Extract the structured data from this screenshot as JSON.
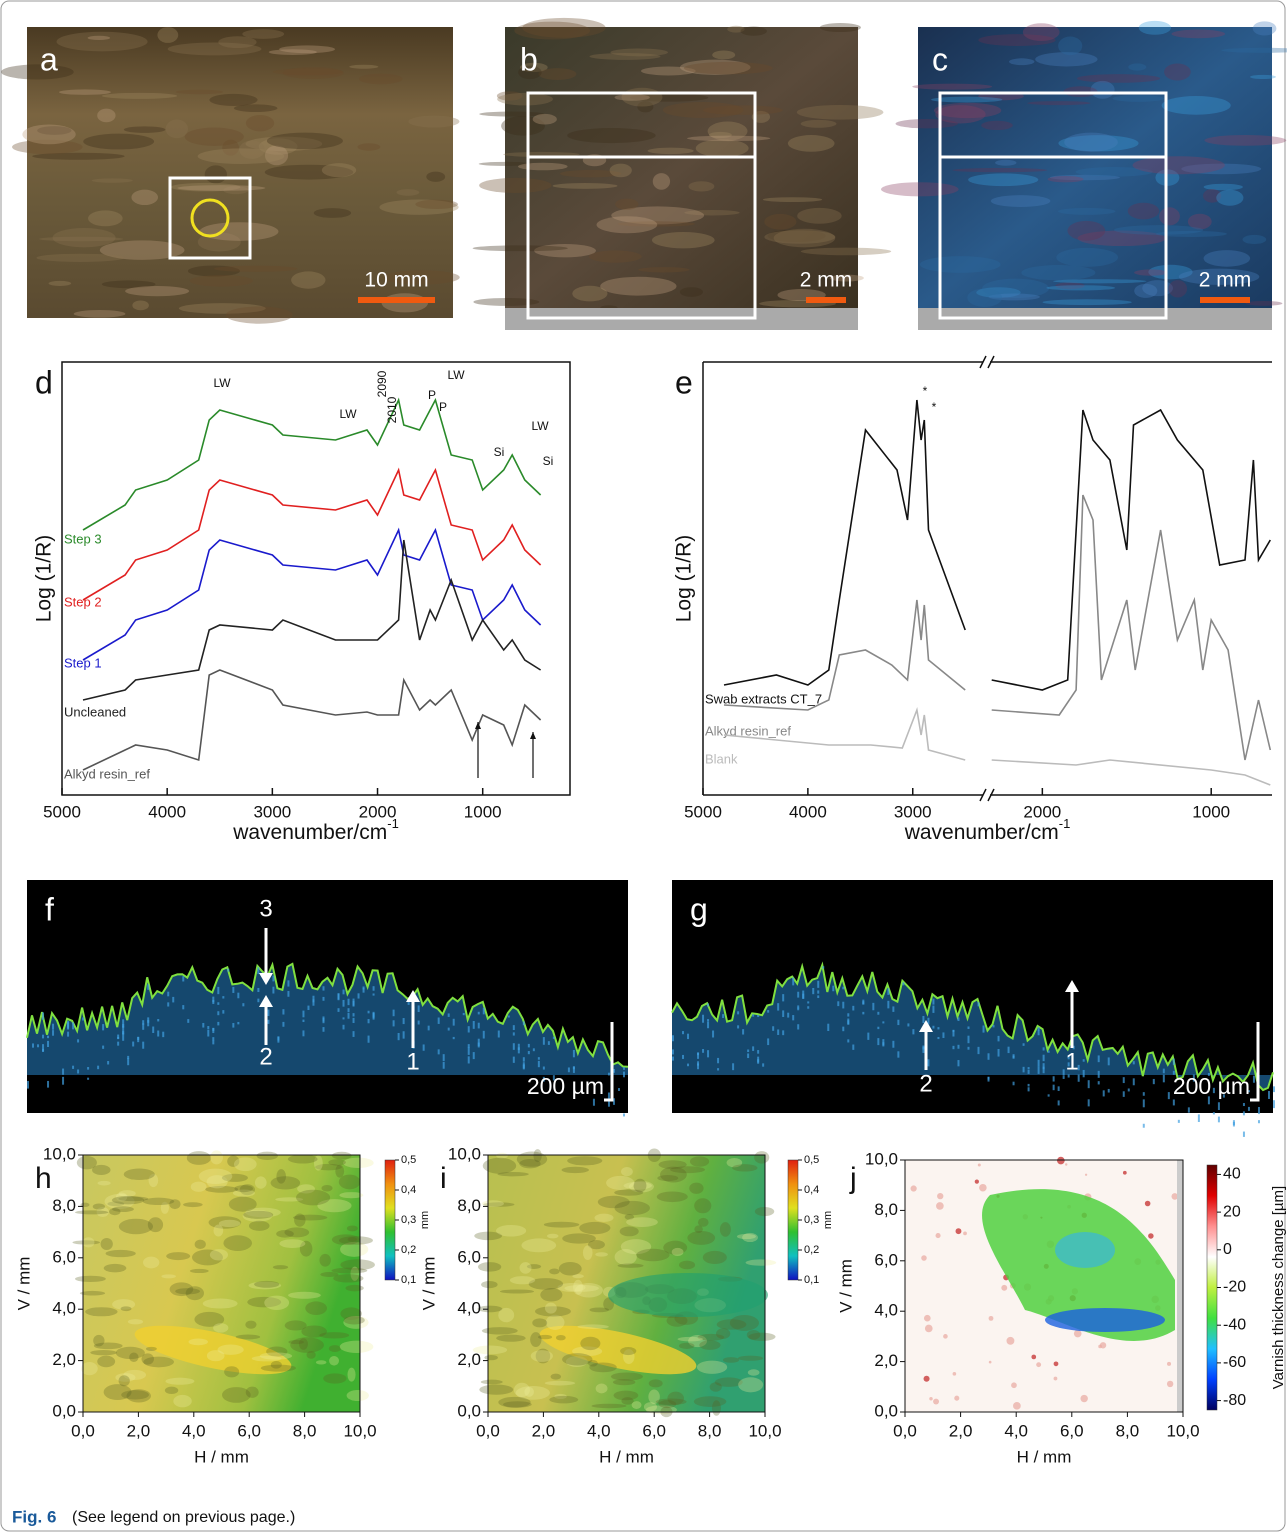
{
  "photos": [
    {
      "label": "a",
      "scale": "10 mm"
    },
    {
      "label": "b",
      "scale": "2 mm"
    },
    {
      "label": "c",
      "scale": "2 mm"
    }
  ],
  "chart_data": [
    {
      "type": "line",
      "label": "d",
      "ylabel": "Log (1/R)",
      "xlabel": "wavenumber/cm",
      "xlabel_sup": "-1",
      "xlim": [
        5000,
        170
      ],
      "ylim": [
        0,
        433
      ],
      "xticks": [
        5000,
        4000,
        3000,
        2000,
        1000
      ],
      "x": [
        4800,
        4400,
        4300,
        4000,
        3700,
        3600,
        3500,
        3000,
        2900,
        2400,
        2100,
        2000,
        1800,
        1750,
        1600,
        1500,
        1450,
        1300,
        1100,
        1000,
        800,
        720,
        600,
        450
      ],
      "series": [
        {
          "name": "Step 3",
          "color": "#2a8a2a",
          "values": [
            265,
            290,
            305,
            315,
            335,
            375,
            385,
            370,
            360,
            355,
            365,
            350,
            395,
            370,
            365,
            385,
            395,
            340,
            335,
            305,
            325,
            340,
            315,
            300
          ]
        },
        {
          "name": "Step 2",
          "color": "#e02020",
          "values": [
            195,
            220,
            235,
            245,
            265,
            305,
            315,
            300,
            290,
            285,
            295,
            280,
            325,
            300,
            295,
            315,
            325,
            270,
            265,
            235,
            255,
            270,
            245,
            230
          ]
        },
        {
          "name": "Step 1",
          "color": "#1a1acc",
          "values": [
            135,
            160,
            175,
            185,
            205,
            245,
            255,
            240,
            230,
            225,
            235,
            220,
            265,
            240,
            235,
            255,
            265,
            210,
            205,
            175,
            195,
            210,
            185,
            170
          ]
        },
        {
          "name": "Uncleaned",
          "color": "#222222",
          "values": [
            95,
            105,
            115,
            120,
            125,
            165,
            170,
            165,
            175,
            155,
            155,
            155,
            175,
            255,
            155,
            185,
            175,
            215,
            155,
            175,
            145,
            155,
            135,
            125
          ]
        },
        {
          "name": "Alkyd resin_ref",
          "color": "#555555",
          "values": [
            25,
            45,
            50,
            45,
            35,
            120,
            125,
            105,
            90,
            80,
            83,
            80,
            80,
            115,
            85,
            95,
            90,
            105,
            55,
            80,
            70,
            50,
            90,
            75
          ]
        }
      ],
      "annotations": [
        "LW",
        "2090",
        "2010",
        "P",
        "P",
        "LW",
        "LW",
        "Si",
        "LW",
        "Si"
      ]
    },
    {
      "type": "line",
      "label": "e",
      "ylabel": "Log (1/R)",
      "xlabel": "wavenumber/cm",
      "xlabel_sup": "-1",
      "segments": [
        [
          5000,
          2330
        ],
        [
          2310,
          640
        ]
      ],
      "ylim": [
        0,
        433
      ],
      "xticks": [
        5000,
        4000,
        3000,
        2000,
        1000
      ],
      "series": [
        {
          "name": "Swab extracts CT_7",
          "color": "#111111",
          "x": [
            4800,
            4300,
            4000,
            3800,
            3700,
            3450,
            3150,
            3050,
            2960,
            2920,
            2890,
            2850,
            2500,
            2400,
            2300,
            2000,
            1850,
            1760,
            1700,
            1600,
            1500,
            1460,
            1300,
            1200,
            1050,
            950,
            800,
            750,
            720,
            650
          ],
          "values": [
            110,
            120,
            110,
            125,
            195,
            365,
            325,
            275,
            395,
            355,
            375,
            265,
            165,
            null,
            115,
            105,
            115,
            385,
            355,
            335,
            245,
            370,
            385,
            355,
            325,
            230,
            235,
            335,
            235,
            255
          ]
        },
        {
          "name": "Alkyd resin_ref",
          "color": "#888888",
          "x": [
            4800,
            4000,
            3800,
            3700,
            3450,
            3200,
            3050,
            2960,
            2920,
            2890,
            2850,
            2500,
            2400,
            2300,
            1900,
            1800,
            1760,
            1700,
            1650,
            1500,
            1450,
            1300,
            1200,
            1100,
            1050,
            1000,
            900,
            800,
            720,
            650
          ],
          "values": [
            90,
            85,
            95,
            140,
            145,
            130,
            115,
            195,
            155,
            190,
            135,
            105,
            null,
            85,
            80,
            105,
            300,
            275,
            115,
            195,
            125,
            265,
            155,
            195,
            125,
            175,
            145,
            35,
            95,
            45
          ]
        },
        {
          "name": "Blank",
          "color": "#bbbbbb",
          "x": [
            4800,
            3800,
            3400,
            3100,
            2960,
            2920,
            2890,
            2850,
            2500,
            2400,
            2300,
            1800,
            1600,
            1000,
            800,
            650
          ],
          "values": [
            60,
            50,
            50,
            47,
            85,
            60,
            80,
            45,
            35,
            null,
            35,
            30,
            35,
            25,
            20,
            10
          ]
        }
      ],
      "annotations": [
        "*",
        "*"
      ]
    },
    {
      "type": "heatmap",
      "label": "h",
      "xlabel": "H / mm",
      "ylabel": "V / mm",
      "xlim": [
        0,
        10
      ],
      "ylim": [
        0,
        10
      ],
      "xticks": [
        {
          "value": 0,
          "label": "0,0"
        },
        {
          "value": 2,
          "label": "2,0"
        },
        {
          "value": 4,
          "label": "4,0"
        },
        {
          "value": 6,
          "label": "6,0"
        },
        {
          "value": 8,
          "label": "8,0"
        },
        {
          "value": 10,
          "label": "10,0"
        }
      ],
      "yticks": [
        {
          "value": 0,
          "label": "0,0"
        },
        {
          "value": 2,
          "label": "2,0"
        },
        {
          "value": 4,
          "label": "4,0"
        },
        {
          "value": 6,
          "label": "6,0"
        },
        {
          "value": 8,
          "label": "8,0"
        },
        {
          "value": 10,
          "label": "10,0"
        }
      ],
      "clim": [
        0.1,
        0.5
      ],
      "cbar_label": "mm",
      "colormap": [
        "#1010c0",
        "#10c0c0",
        "#30c030",
        "#e0e020",
        "#f09010",
        "#e02010"
      ],
      "cticks": [
        {
          "value": 0.5,
          "label": "0,5"
        },
        {
          "value": 0.4,
          "label": "0,4"
        },
        {
          "value": 0.3,
          "label": "0,3"
        },
        {
          "value": 0.2,
          "label": "0,2"
        },
        {
          "value": 0.1,
          "label": "0,1"
        }
      ]
    },
    {
      "type": "heatmap",
      "label": "i",
      "xlabel": "H / mm",
      "ylabel": "V / mm",
      "xlim": [
        0,
        10
      ],
      "ylim": [
        0,
        10
      ],
      "xticks": [
        {
          "value": 0,
          "label": "0,0"
        },
        {
          "value": 2,
          "label": "2,0"
        },
        {
          "value": 4,
          "label": "4,0"
        },
        {
          "value": 6,
          "label": "6,0"
        },
        {
          "value": 8,
          "label": "8,0"
        },
        {
          "value": 10,
          "label": "10,0"
        }
      ],
      "yticks": [
        {
          "value": 0,
          "label": "0,0"
        },
        {
          "value": 2,
          "label": "2,0"
        },
        {
          "value": 4,
          "label": "4,0"
        },
        {
          "value": 6,
          "label": "6,0"
        },
        {
          "value": 8,
          "label": "8,0"
        },
        {
          "value": 10,
          "label": "10,0"
        }
      ],
      "clim": [
        0.1,
        0.5
      ],
      "cbar_label": "mm",
      "colormap": [
        "#1010c0",
        "#10c0c0",
        "#30c030",
        "#e0e020",
        "#f09010",
        "#e02010"
      ],
      "cticks": [
        {
          "value": 0.5,
          "label": "0,5"
        },
        {
          "value": 0.4,
          "label": "0,4"
        },
        {
          "value": 0.3,
          "label": "0,3"
        },
        {
          "value": 0.2,
          "label": "0,2"
        },
        {
          "value": 0.1,
          "label": "0,1"
        }
      ]
    },
    {
      "type": "heatmap",
      "label": "j",
      "xlabel": "H / mm",
      "ylabel": "V / mm",
      "xlim": [
        0,
        10
      ],
      "ylim": [
        0,
        10
      ],
      "xticks": [
        {
          "value": 0,
          "label": "0,0"
        },
        {
          "value": 2,
          "label": "2,0"
        },
        {
          "value": 4,
          "label": "4,0"
        },
        {
          "value": 6,
          "label": "6,0"
        },
        {
          "value": 8,
          "label": "8,0"
        },
        {
          "value": 10,
          "label": "10,0"
        }
      ],
      "yticks": [
        {
          "value": 0,
          "label": "0,0"
        },
        {
          "value": 2,
          "label": "2,0"
        },
        {
          "value": 4,
          "label": "4,0"
        },
        {
          "value": 6,
          "label": "6,0"
        },
        {
          "value": 8,
          "label": "8,0"
        },
        {
          "value": 10,
          "label": "10,0"
        }
      ],
      "clim": [
        -85,
        45
      ],
      "cbar_label": "Varnish thickness change [µm]",
      "colormap": [
        "#000060",
        "#0040ff",
        "#20c0ff",
        "#40e040",
        "#c0f040",
        "#ffffff",
        "#ff9090",
        "#e00000",
        "#600000"
      ],
      "cticks": [
        40,
        20,
        0,
        -20,
        -40,
        -60,
        -80
      ]
    }
  ],
  "oct": [
    {
      "label": "f",
      "arrows": [
        "3",
        "2",
        "1"
      ],
      "scale": "200 µm"
    },
    {
      "label": "g",
      "arrows": [
        "2",
        "1"
      ],
      "scale": "200 µm"
    }
  ],
  "caption": {
    "label": "Fig. 6",
    "text": "(See legend on previous page.)"
  }
}
